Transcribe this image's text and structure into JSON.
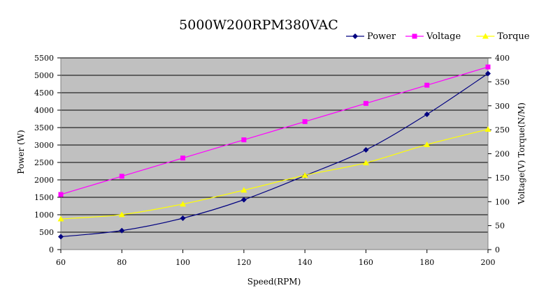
{
  "chart_data": {
    "type": "line",
    "title": "5000W200RPM380VAC",
    "xlabel": "Speed(RPM)",
    "ylabel_left": "Power (W)",
    "ylabel_right": "Voltage(V) Torque(N/M)",
    "x": [
      60,
      80,
      100,
      120,
      140,
      160,
      180,
      200
    ],
    "x_ticks": [
      "60",
      "80",
      "100",
      "120",
      "140",
      "160",
      "180",
      "200"
    ],
    "xlim": [
      60,
      200
    ],
    "ylim_left": [
      0,
      5500
    ],
    "ylim_right": [
      0,
      400
    ],
    "y_ticks_left": [
      "0",
      "500",
      "1000",
      "1500",
      "2000",
      "2500",
      "3000",
      "3500",
      "4000",
      "4500",
      "5000",
      "5500"
    ],
    "y_ticks_right": [
      "0",
      "50",
      "100",
      "150",
      "200",
      "250",
      "300",
      "350",
      "400"
    ],
    "grid": true,
    "legend_position": "top-right",
    "series": [
      {
        "name": "Power",
        "axis": "left",
        "color": "#000080",
        "marker": "diamond",
        "values": [
          370,
          545,
          900,
          1430,
          2120,
          2860,
          3880,
          5050
        ]
      },
      {
        "name": "Voltage",
        "axis": "right",
        "color": "#ff00ff",
        "marker": "square",
        "values": [
          115,
          153,
          191,
          229,
          267,
          305,
          343,
          381
        ]
      },
      {
        "name": "Torque",
        "axis": "right",
        "color": "#ffff00",
        "marker": "triangle",
        "values": [
          64,
          73,
          95,
          124,
          155,
          181,
          219,
          251
        ]
      }
    ]
  }
}
